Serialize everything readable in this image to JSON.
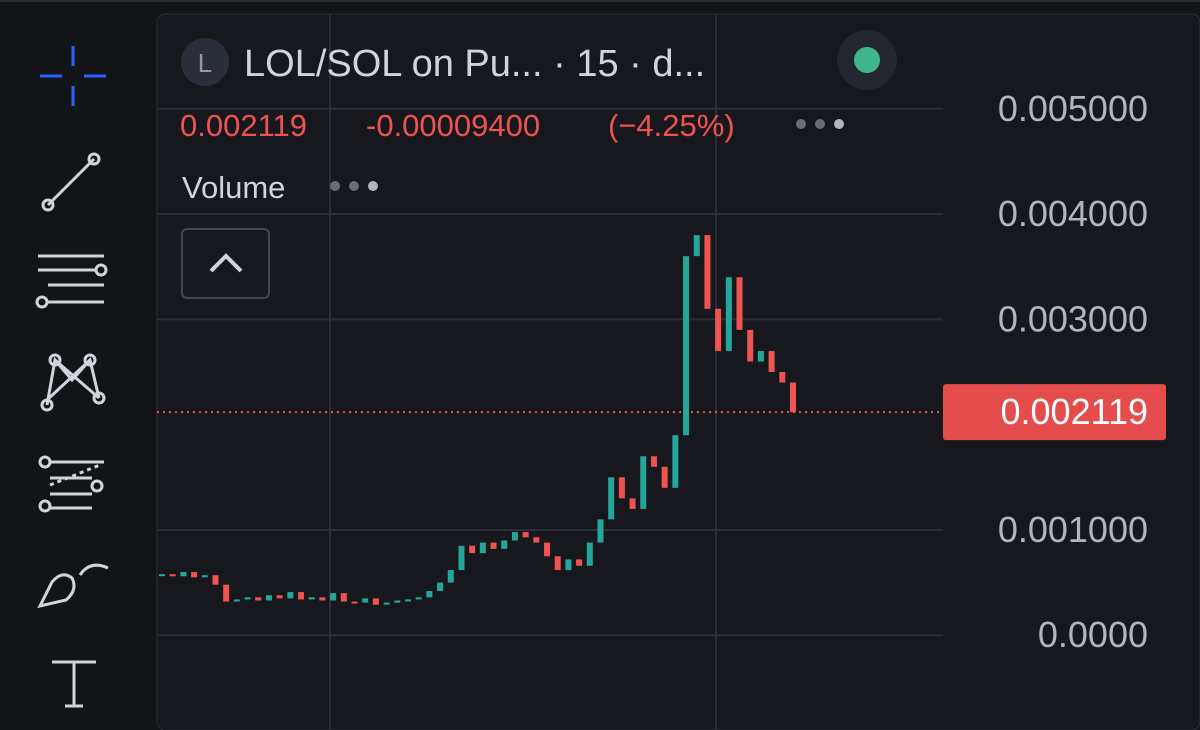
{
  "header": {
    "avatar": "L",
    "symbol": "LOL/SOL on Pu... · 15 · d..."
  },
  "legend": {
    "price": "0.002119",
    "change": "-0.00009400",
    "change_pct": "(−4.25%)"
  },
  "volume": {
    "label": "Volume"
  },
  "chart_data": {
    "type": "candlestick",
    "values": [
      0.00058,
      0.00056,
      0.0006,
      0.00055,
      0.00057,
      0.00048,
      0.00032,
      0.00034,
      0.00036,
      0.00033,
      0.00038,
      0.00035,
      0.00041,
      0.00034,
      0.00036,
      0.00033,
      0.0004,
      0.00032,
      0.00031,
      0.00035,
      0.00029,
      0.00031,
      0.00033,
      0.00034,
      0.00036,
      0.00042,
      0.0005,
      0.00062,
      0.00085,
      0.00078,
      0.00088,
      0.00082,
      0.0009,
      0.00098,
      0.00093,
      0.00088,
      0.00075,
      0.00062,
      0.00072,
      0.00066,
      0.00088,
      0.0011,
      0.0015,
      0.0013,
      0.0012,
      0.0017,
      0.0016,
      0.0014,
      0.0019,
      0.0036,
      0.0038,
      0.0031,
      0.0027,
      0.0034,
      0.0029,
      0.0026,
      0.0027,
      0.0025,
      0.0024,
      0.002119
    ],
    "up_color": "#26a69a",
    "down_color": "#ef5350",
    "ylim": [
      -0.0009,
      0.0059
    ],
    "yticks": [
      {
        "value": 0.005,
        "label": "0.005000"
      },
      {
        "value": 0.004,
        "label": "0.004000"
      },
      {
        "value": 0.003,
        "label": "0.003000"
      },
      {
        "value": 0.001,
        "label": "0.001000"
      },
      {
        "value": 0,
        "label": "0.0000"
      }
    ],
    "grid": true,
    "last_price": 0.002119
  }
}
